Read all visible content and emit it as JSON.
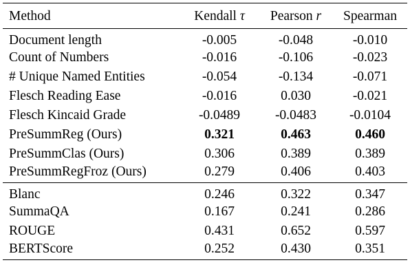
{
  "table": {
    "headers": {
      "method": "Method",
      "kendall": "Kendall",
      "kendall_symbol": "τ",
      "pearson": "Pearson",
      "pearson_symbol": "r",
      "spearman": "Spearman"
    },
    "group1": [
      {
        "method": "Document length",
        "kendall": "-0.005",
        "pearson": "-0.048",
        "spearman": "-0.010"
      },
      {
        "method": "Count of Numbers",
        "kendall": "-0.016",
        "pearson": "-0.106",
        "spearman": "-0.023"
      },
      {
        "method": "# Unique Named Entities",
        "kendall": "-0.054",
        "pearson": "-0.134",
        "spearman": "-0.071"
      },
      {
        "method": "Flesch Reading Ease",
        "kendall": "-0.016",
        "pearson": "0.030",
        "spearman": "-0.021"
      },
      {
        "method": "Flesch Kincaid Grade",
        "kendall": "-0.0489",
        "pearson": "-0.0483",
        "spearman": "-0.0104"
      },
      {
        "method": "PreSummReg (Ours)",
        "kendall": "0.321",
        "pearson": "0.463",
        "spearman": "0.460"
      },
      {
        "method": "PreSummClas (Ours)",
        "kendall": "0.306",
        "pearson": "0.389",
        "spearman": "0.389"
      },
      {
        "method": "PreSummRegFroz (Ours)",
        "kendall": "0.279",
        "pearson": "0.406",
        "spearman": "0.403"
      }
    ],
    "group2": [
      {
        "method": "Blanc",
        "kendall": "0.246",
        "pearson": "0.322",
        "spearman": "0.347"
      },
      {
        "method": "SummaQA",
        "kendall": "0.167",
        "pearson": "0.241",
        "spearman": "0.286"
      },
      {
        "method": "ROUGE",
        "kendall": "0.431",
        "pearson": "0.652",
        "spearman": "0.597"
      },
      {
        "method": "BERTScore",
        "kendall": "0.252",
        "pearson": "0.430",
        "spearman": "0.351"
      }
    ]
  }
}
